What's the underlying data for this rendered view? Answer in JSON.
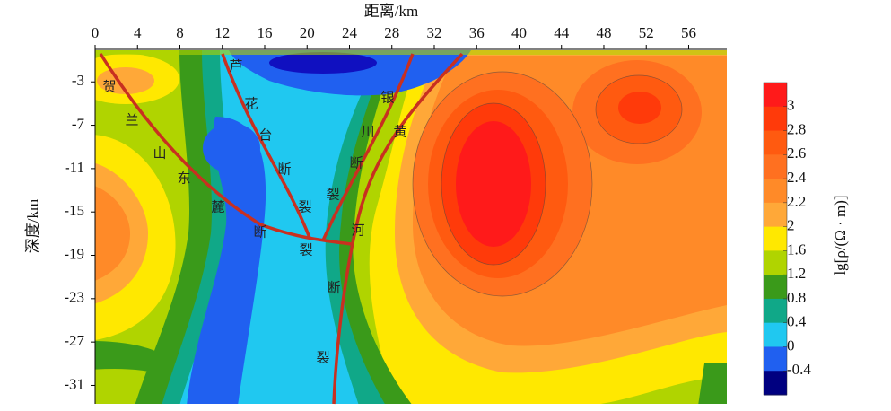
{
  "chart_data": {
    "type": "contour",
    "xlabel": "距离/km",
    "ylabel": "深度/km",
    "colorbar_label": "lg[ρ/(Ω · m)]",
    "xlim": [
      0,
      59.6
    ],
    "xticks": [
      0,
      4,
      8,
      12,
      16,
      20,
      24,
      28,
      32,
      36,
      40,
      44,
      48,
      52,
      56
    ],
    "ylim": [
      -32.7,
      0
    ],
    "yticks": [
      -3,
      -7,
      -11,
      -15,
      -19,
      -23,
      -27,
      -31
    ],
    "colorbar": {
      "ticks": [
        3,
        2.8,
        2.6,
        2.4,
        2.2,
        2,
        1.6,
        1.2,
        0.8,
        0.4,
        0,
        -0.4
      ],
      "colors": [
        "#ff1a1a",
        "#ff3a0a",
        "#ff5a10",
        "#ff7020",
        "#ff8a28",
        "#ffa838",
        "#ffe800",
        "#b0d400",
        "#3a9a1a",
        "#10a888",
        "#20c8f0",
        "#2060f0",
        "#000080"
      ]
    },
    "annotations": [
      [
        "贺",
        "兰",
        "山",
        "东",
        "麓",
        "断",
        "裂"
      ],
      [
        "芦",
        "花",
        "台",
        "断",
        "裂"
      ],
      [
        "银",
        "川",
        "断",
        "裂"
      ],
      [
        "黄",
        "河",
        "断",
        "裂"
      ]
    ]
  }
}
